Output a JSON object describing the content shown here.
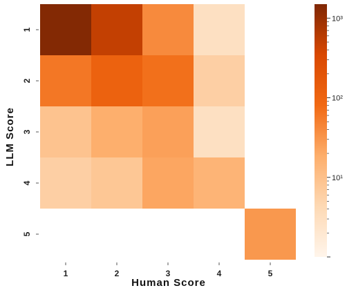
{
  "chart_data": {
    "type": "heatmap",
    "title": "",
    "xlabel": "Human Score",
    "ylabel": "LLM Score",
    "x_categories": [
      "1",
      "2",
      "3",
      "4",
      "5"
    ],
    "y_categories": [
      "1",
      "2",
      "3",
      "4",
      "5"
    ],
    "values": [
      [
        1400,
        500,
        40,
        3,
        null
      ],
      [
        60,
        110,
        70,
        6,
        null
      ],
      [
        9,
        18,
        25,
        3,
        null
      ],
      [
        6,
        8,
        22,
        15,
        null
      ],
      [
        null,
        null,
        null,
        null,
        30
      ]
    ],
    "color_scale": "log",
    "color_range": [
      1,
      1500
    ],
    "colormap": [
      "#fff5eb",
      "#fdd9b4",
      "#fdae6b",
      "#f16913",
      "#d94801",
      "#7f2704"
    ],
    "colorbar": {
      "ticks": [
        {
          "value": 10,
          "label": "10¹"
        },
        {
          "value": 100,
          "label": "10²"
        },
        {
          "value": 1000,
          "label": "10³"
        }
      ]
    }
  }
}
